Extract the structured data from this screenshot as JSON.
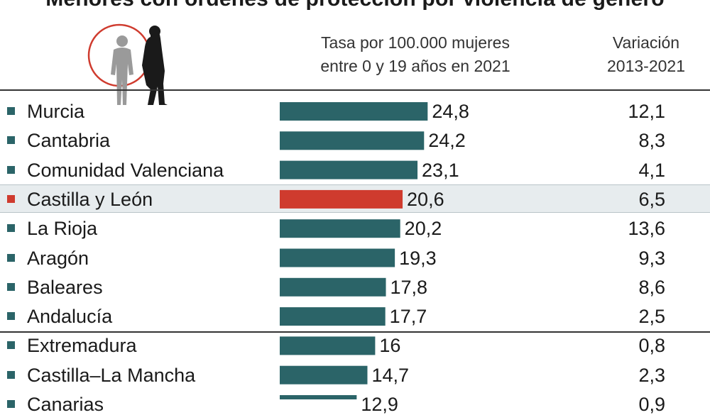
{
  "colors": {
    "bar": "#2b6468",
    "highlight": "#cf3b2e",
    "marker": "#2b6468"
  },
  "chart_data": {
    "type": "bar",
    "orientation": "horizontal",
    "title": "Menores con órdenes de protección por violencia de género",
    "columns": {
      "rate_line1": "Tasa por 100.000 mujeres",
      "rate_line2": "entre 0 y 19 años en 2021",
      "var_line1": "Variación",
      "var_line2": "2013-2021"
    },
    "xlim": [
      0,
      25
    ],
    "categories": [
      "Murcia",
      "Cantabria",
      "Comunidad Valenciana",
      "Castilla y León",
      "La Rioja",
      "Aragón",
      "Baleares",
      "Andalucía",
      "Extremadura",
      "Castilla–La Mancha",
      "Canarias"
    ],
    "values": [
      24.8,
      24.2,
      23.1,
      20.6,
      20.2,
      19.3,
      17.8,
      17.7,
      16,
      14.7,
      12.9
    ],
    "value_labels": [
      "24,8",
      "24,2",
      "23,1",
      "20,6",
      "20,2",
      "19,3",
      "17,8",
      "17,7",
      "16",
      "14,7",
      "12,9"
    ],
    "variation": [
      "12,1",
      "8,3",
      "4,1",
      "6,5",
      "13,6",
      "9,3",
      "8,6",
      "2,5",
      "0,8",
      "2,3",
      "0,9"
    ],
    "highlighted": "Castilla y León"
  }
}
